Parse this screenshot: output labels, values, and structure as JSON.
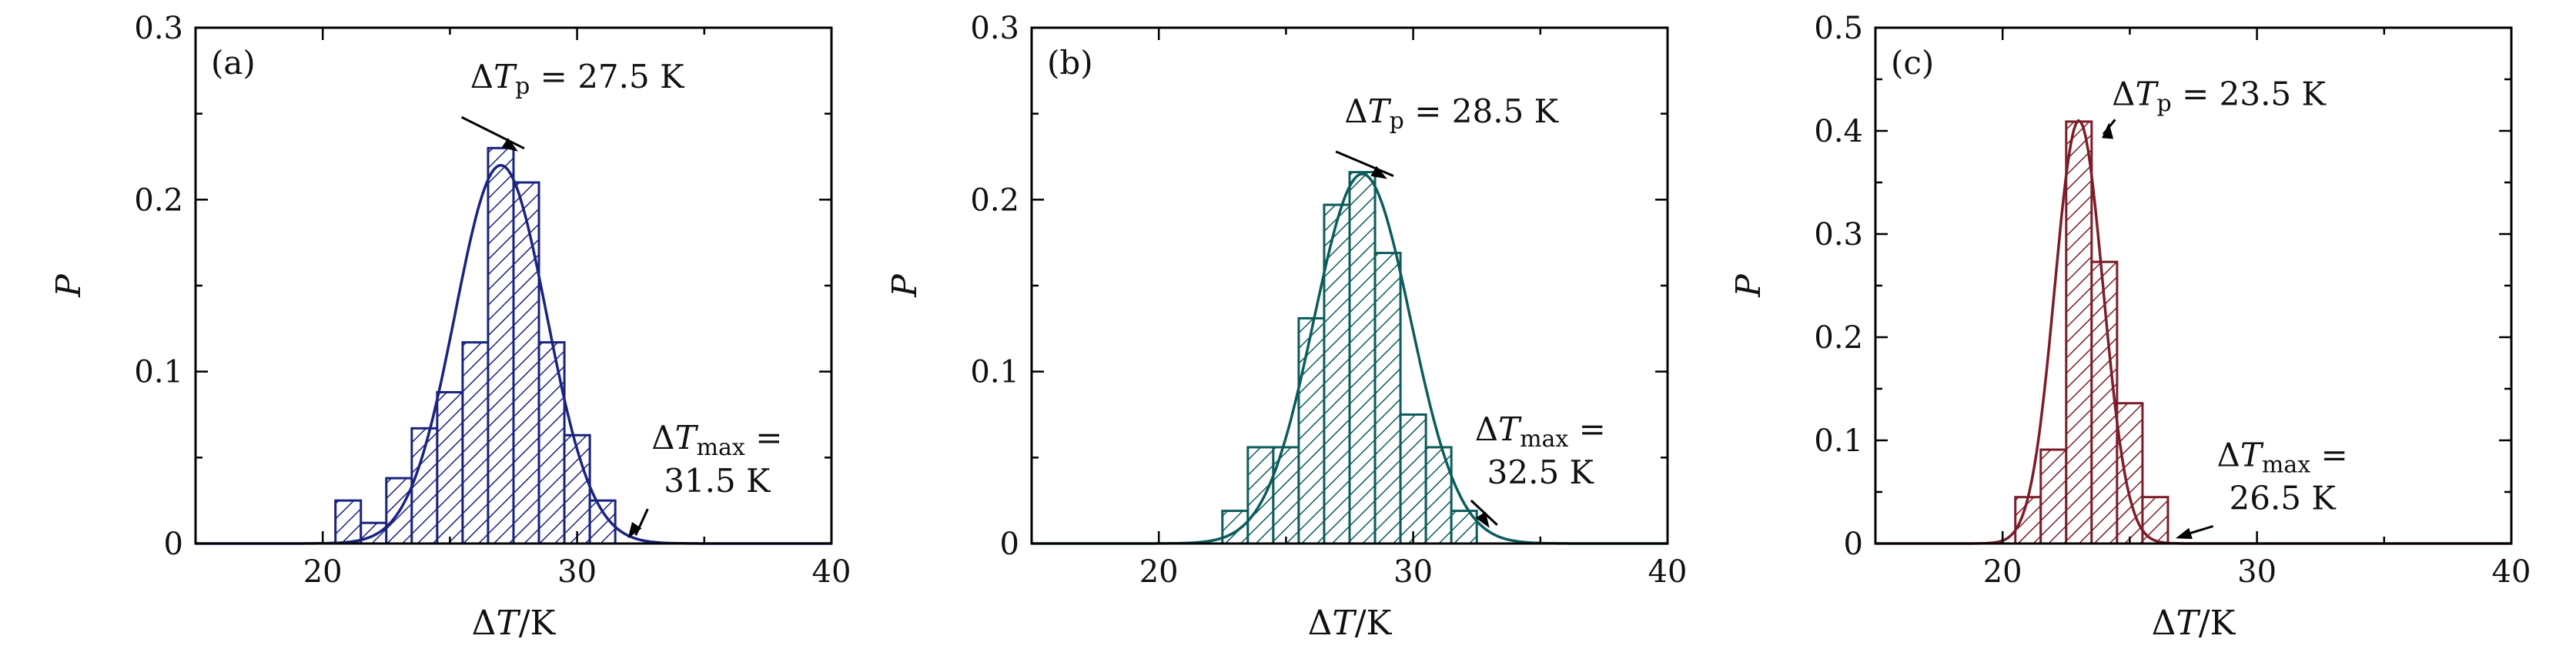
{
  "chart_data": [
    {
      "type": "bar",
      "panel": "(a)",
      "color": "#1a237e",
      "xlabel": "ΔT/K",
      "ylabel": "P",
      "xlim": [
        15,
        40
      ],
      "ylim": [
        0,
        0.3
      ],
      "xticks": [
        20,
        30,
        40
      ],
      "yticks": [
        0,
        0.1,
        0.2,
        0.3
      ],
      "ytick_labels": [
        "0",
        "0.1",
        "0.2",
        "0.3"
      ],
      "bin_width": 1,
      "x": [
        21,
        22,
        23,
        24,
        25,
        26,
        27,
        28,
        29,
        30,
        31
      ],
      "values": [
        0.025,
        0.012,
        0.038,
        0.067,
        0.088,
        0.117,
        0.23,
        0.21,
        0.117,
        0.063,
        0.025
      ],
      "fit": {
        "type": "gaussian",
        "mu": 27.0,
        "sigma": 1.8,
        "amplitude": 0.22
      },
      "annotations": [
        {
          "text": "ΔTp = 27.5 K",
          "lines": [
            "ΔTp = 27.5 K"
          ],
          "x": 30.0,
          "y": 0.265,
          "target": [
            27.5,
            0.228
          ]
        },
        {
          "text": "ΔTmax = 31.5 K",
          "lines": [
            "ΔTmax =",
            "31.5 K"
          ],
          "x": 35.5,
          "y": 0.055,
          "target": [
            32.0,
            0.003
          ]
        }
      ]
    },
    {
      "type": "bar",
      "panel": "(b)",
      "color": "#0d5c5c",
      "xlabel": "ΔT/K",
      "ylabel": "P",
      "xlim": [
        15,
        40
      ],
      "ylim": [
        0,
        0.3
      ],
      "xticks": [
        20,
        30,
        40
      ],
      "yticks": [
        0,
        0.1,
        0.2,
        0.3
      ],
      "ytick_labels": [
        "0",
        "0.1",
        "0.2",
        "0.3"
      ],
      "bin_width": 1,
      "x": [
        23,
        24,
        25,
        26,
        27,
        28,
        29,
        30,
        31,
        32
      ],
      "values": [
        0.019,
        0.056,
        0.056,
        0.131,
        0.197,
        0.216,
        0.169,
        0.075,
        0.056,
        0.019
      ],
      "fit": {
        "type": "gaussian",
        "mu": 28.0,
        "sigma": 1.9,
        "amplitude": 0.215
      },
      "annotations": [
        {
          "text": "ΔTp = 28.5 K",
          "lines": [
            "ΔTp = 28.5 K"
          ],
          "x": 31.5,
          "y": 0.245,
          "target": [
            28.8,
            0.212
          ]
        },
        {
          "text": "ΔTmax = 32.5 K",
          "lines": [
            "ΔTmax =",
            "32.5 K"
          ],
          "x": 35.0,
          "y": 0.06,
          "target": [
            33.0,
            0.009
          ]
        }
      ]
    },
    {
      "type": "bar",
      "panel": "(c)",
      "color": "#7b1e2a",
      "xlabel": "ΔT/K",
      "ylabel": "P",
      "xlim": [
        15,
        40
      ],
      "ylim": [
        0,
        0.5
      ],
      "xticks": [
        20,
        30,
        40
      ],
      "yticks": [
        0,
        0.1,
        0.2,
        0.3,
        0.4,
        0.5
      ],
      "ytick_labels": [
        "0",
        "0.1",
        "0.2",
        "0.3",
        "0.4",
        "0.5"
      ],
      "bin_width": 1,
      "x": [
        21,
        22,
        23,
        24,
        25,
        26
      ],
      "values": [
        0.045,
        0.091,
        0.409,
        0.273,
        0.136,
        0.045
      ],
      "fit": {
        "type": "gaussian",
        "mu": 23.0,
        "sigma": 0.95,
        "amplitude": 0.41
      },
      "annotations": [
        {
          "text": "ΔTp = 23.5 K",
          "lines": [
            "ΔTp = 23.5 K"
          ],
          "x": 28.5,
          "y": 0.425,
          "target": [
            24.0,
            0.408
          ]
        },
        {
          "text": "ΔTmax = 26.5 K",
          "lines": [
            "ΔTmax =",
            "26.5 K"
          ],
          "x": 31.0,
          "y": 0.075,
          "target": [
            26.8,
            0.005
          ]
        }
      ]
    }
  ]
}
